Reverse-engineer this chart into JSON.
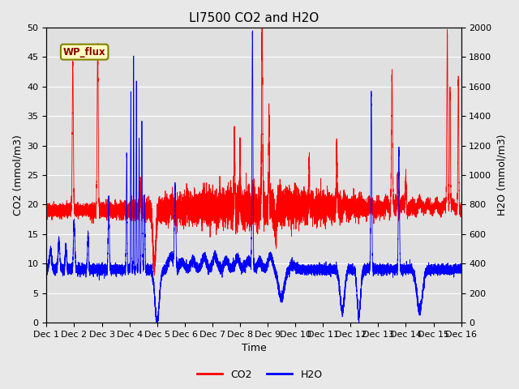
{
  "title": "LI7500 CO2 and H2O",
  "xlabel": "Time",
  "ylabel_left": "CO2 (mmol/m3)",
  "ylabel_right": "H2O (mmol/m3)",
  "co2_color": "#FF0000",
  "h2o_color": "#0000FF",
  "fig_facecolor": "#E8E8E8",
  "ax_facecolor": "#E0E0E0",
  "ylim_co2": [
    0,
    50
  ],
  "ylim_h2o": [
    0,
    2000
  ],
  "yticks_co2": [
    0,
    5,
    10,
    15,
    20,
    25,
    30,
    35,
    40,
    45,
    50
  ],
  "yticks_h2o": [
    0,
    200,
    400,
    600,
    800,
    1000,
    1200,
    1400,
    1600,
    1800,
    2000
  ],
  "n_points": 15000,
  "legend_labels": [
    "CO2",
    "H2O"
  ],
  "annotation_text": "WP_flux",
  "grid_color": "#FFFFFF",
  "title_fontsize": 11,
  "label_fontsize": 9,
  "tick_fontsize": 8
}
